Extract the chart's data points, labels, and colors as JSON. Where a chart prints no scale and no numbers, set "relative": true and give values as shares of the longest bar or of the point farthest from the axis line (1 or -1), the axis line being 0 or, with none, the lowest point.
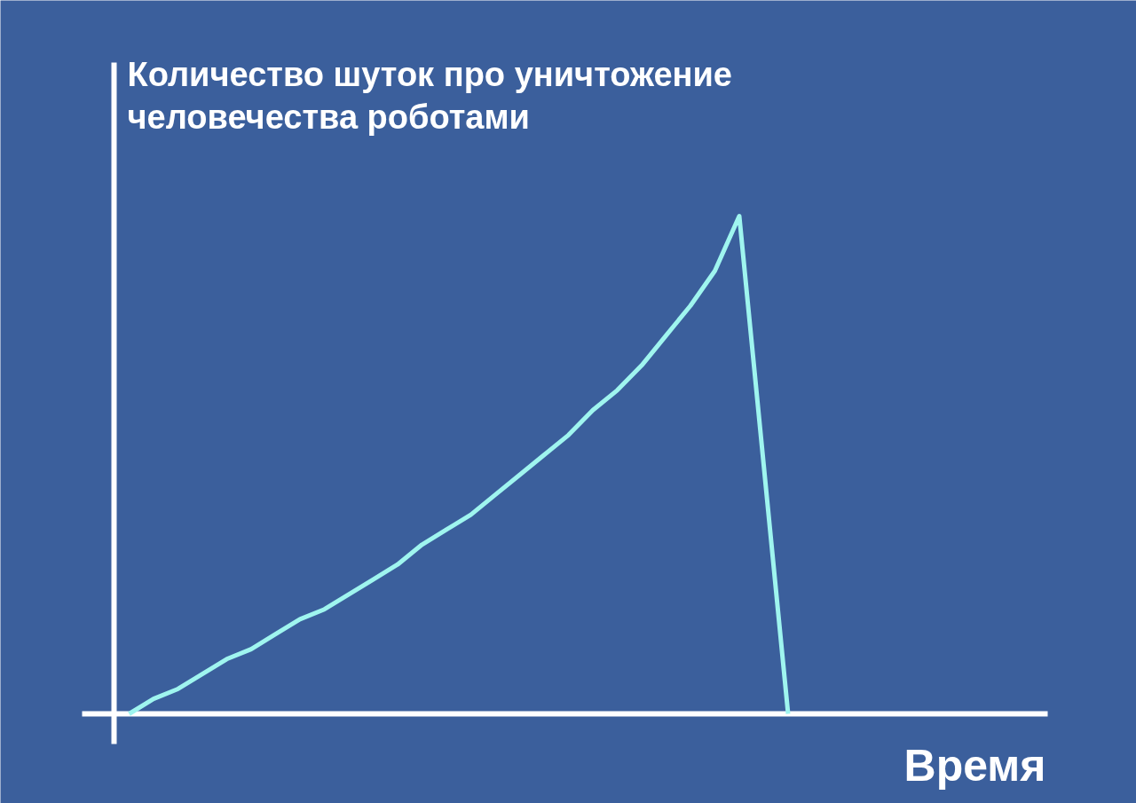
{
  "chart_data": {
    "type": "line",
    "relative": true,
    "ylabel": "Количество шуток про уничтожение человечества роботами",
    "xlabel": "Время",
    "categories": [
      null,
      null,
      null,
      null,
      null,
      null,
      null,
      null,
      null,
      null,
      null,
      null,
      null,
      null,
      null,
      null,
      null,
      null,
      null,
      null,
      null,
      null,
      null,
      null,
      null,
      null,
      null,
      null
    ],
    "series": [
      {
        "color": "#9ff5ef",
        "values": [
          0,
          0.03,
          0.05,
          0.08,
          0.11,
          0.13,
          0.16,
          0.19,
          0.21,
          0.24,
          0.27,
          0.3,
          0.34,
          0.37,
          0.4,
          0.44,
          0.48,
          0.52,
          0.56,
          0.61,
          0.65,
          0.7,
          0.76,
          0.82,
          0.89,
          1,
          0.5,
          0
        ]
      }
    ],
    "marker": "none",
    "line_style": "solid"
  }
}
